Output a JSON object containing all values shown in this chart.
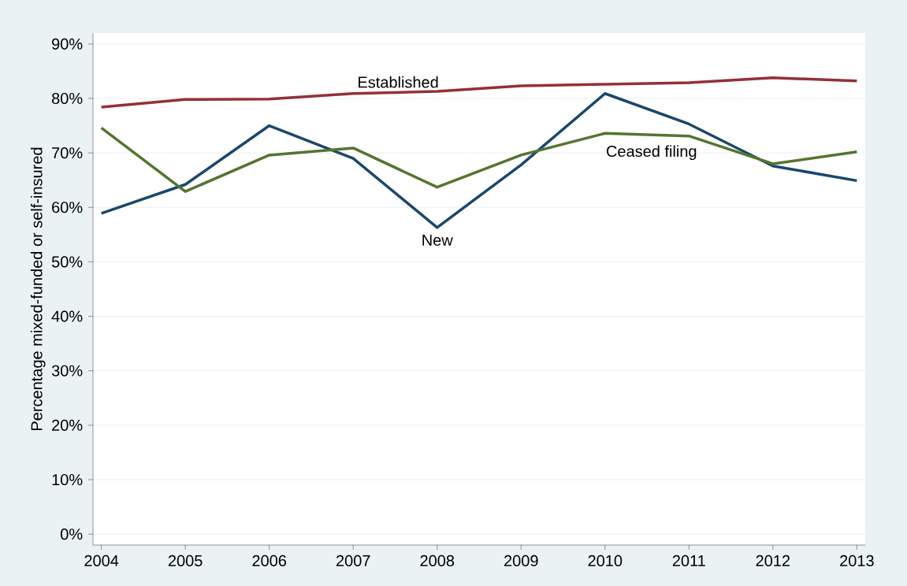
{
  "chart_data": {
    "type": "line",
    "ylabel": "Percentage mixed-funded or self-insured",
    "x": [
      2004,
      2005,
      2006,
      2007,
      2008,
      2009,
      2010,
      2011,
      2012,
      2013
    ],
    "xlim": [
      2003.9,
      2013.1
    ],
    "xticks": [
      2004,
      2005,
      2006,
      2007,
      2008,
      2009,
      2010,
      2011,
      2012,
      2013
    ],
    "ylim": [
      -2,
      92
    ],
    "yticks": [
      {
        "value": 0,
        "label": "0%"
      },
      {
        "value": 10,
        "label": "10%"
      },
      {
        "value": 20,
        "label": "20%"
      },
      {
        "value": 30,
        "label": "30%"
      },
      {
        "value": 40,
        "label": "40%"
      },
      {
        "value": 50,
        "label": "50%"
      },
      {
        "value": 60,
        "label": "60%"
      },
      {
        "value": 70,
        "label": "70%"
      },
      {
        "value": 80,
        "label": "80%"
      },
      {
        "value": 90,
        "label": "90%"
      }
    ],
    "grid": "y",
    "legend": false,
    "series": [
      {
        "name": "Established",
        "color": "#953038",
        "values": [
          78.4,
          79.8,
          79.9,
          80.9,
          81.3,
          82.3,
          82.6,
          82.9,
          83.8,
          83.2
        ]
      },
      {
        "name": "New",
        "color": "#1a476f",
        "values": [
          58.9,
          64.2,
          75.0,
          69.0,
          56.3,
          67.8,
          80.9,
          75.3,
          67.6,
          64.9
        ]
      },
      {
        "name": "Ceased filing",
        "color": "#55752f",
        "values": [
          74.6,
          62.9,
          69.6,
          70.9,
          63.7,
          69.6,
          73.6,
          73.1,
          68.0,
          70.2
        ]
      }
    ]
  }
}
